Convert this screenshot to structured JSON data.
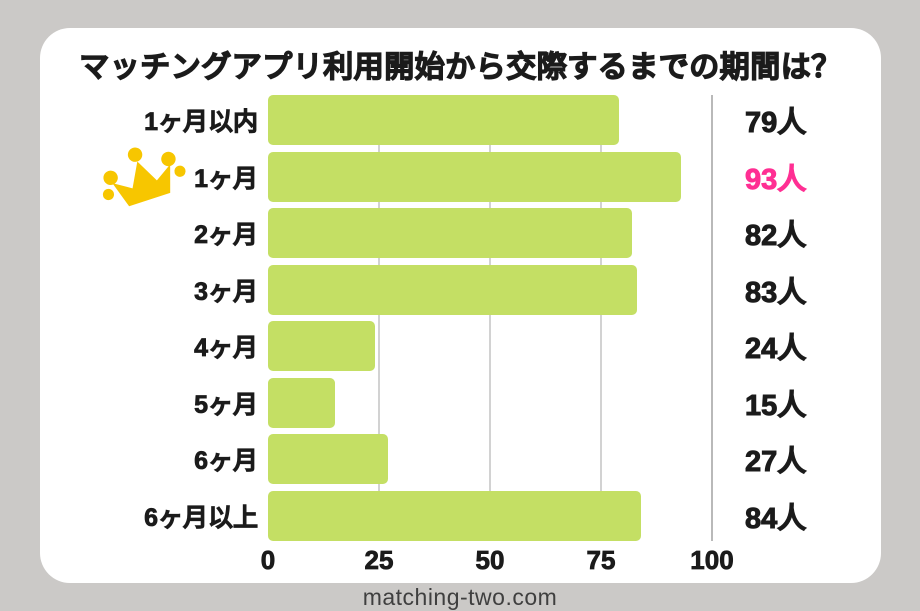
{
  "page": {
    "background": "#cbc9c7",
    "footer": "matching-two.com"
  },
  "icons": {
    "crown_color": "#f7c600"
  },
  "chart_data": {
    "type": "bar",
    "orientation": "horizontal",
    "title": "マッチングアプリ利用開始から交際するまでの期間は？",
    "categories": [
      "1ヶ月以内",
      "1ヶ月",
      "2ヶ月",
      "3ヶ月",
      "4ヶ月",
      "5ヶ月",
      "6ヶ月",
      "6ヶ月以上"
    ],
    "values": [
      79,
      93,
      82,
      83,
      24,
      15,
      27,
      84
    ],
    "unit": "人",
    "value_labels": [
      "79人",
      "93人",
      "82人",
      "83人",
      "24人",
      "15人",
      "27人",
      "84人"
    ],
    "highlight_index": 1,
    "highlight_category": "1ヶ月",
    "xlim": [
      0,
      100
    ],
    "xticks": [
      0,
      25,
      50,
      75,
      100
    ],
    "grid": "vertical",
    "legend_position": "none",
    "colors": {
      "bar": "#c4df64",
      "value": "#1b1b1b",
      "highlight_value": "#ff2f93",
      "gridline": "#d2d2d2",
      "axis_line": "#b9b9b9"
    }
  }
}
